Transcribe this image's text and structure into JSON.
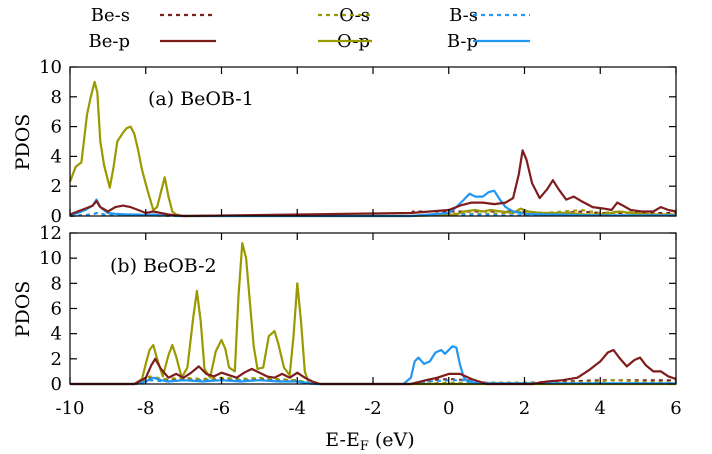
{
  "legend": [
    {
      "label": "Be-s",
      "color": "#7f1d1d",
      "dash": true
    },
    {
      "label": "O-s",
      "color": "#9a9a00",
      "dash": true
    },
    {
      "label": "B-s",
      "color": "#2196f3",
      "dash": true
    },
    {
      "label": "Be-p",
      "color": "#7f1d1d",
      "dash": false
    },
    {
      "label": "O-p",
      "color": "#9a9a00",
      "dash": false
    },
    {
      "label": "B-p",
      "color": "#2196f3",
      "dash": false
    }
  ],
  "xlabel_main": "E-E",
  "xlabel_sub": "F",
  "xlabel_unit": " (eV)",
  "chart_data": [
    {
      "type": "line",
      "title": "(a) BeOB-1",
      "ylabel": "PDOS",
      "xlim": [
        -10,
        6
      ],
      "ylim": [
        0,
        10
      ],
      "xticks": [
        -10,
        -8,
        -6,
        -4,
        -2,
        0,
        2,
        4,
        6
      ],
      "yticks": [
        0,
        2,
        4,
        6,
        8,
        10
      ],
      "series": [
        {
          "name": "O-p",
          "color": "#9a9a00",
          "dash": false,
          "x": [
            -10,
            -9.85,
            -9.7,
            -9.55,
            -9.45,
            -9.35,
            -9.28,
            -9.2,
            -9.1,
            -8.95,
            -8.85,
            -8.75,
            -8.6,
            -8.5,
            -8.4,
            -8.3,
            -8.2,
            -8.1,
            -7.95,
            -7.8,
            -7.7,
            -7.6,
            -7.5,
            -7.4,
            -7.3,
            -7.2,
            -7.1,
            -7.0,
            -1.0,
            0.2,
            0.4,
            0.7,
            0.9,
            1.1,
            1.4,
            1.7,
            1.9,
            2.1,
            2.4,
            2.8,
            3.2,
            3.6,
            4.0,
            4.3,
            4.5,
            4.8,
            5.2,
            5.6,
            5.9,
            6.0
          ],
          "y": [
            2.3,
            3.3,
            3.6,
            6.8,
            8.0,
            9.0,
            8.3,
            5.0,
            3.4,
            1.9,
            3.3,
            5.0,
            5.6,
            5.9,
            6.0,
            5.5,
            4.4,
            3.1,
            1.7,
            0.4,
            0.6,
            1.6,
            2.6,
            1.3,
            0.3,
            0.1,
            0.05,
            0.0,
            0.0,
            0.1,
            0.3,
            0.4,
            0.3,
            0.4,
            0.3,
            0.2,
            0.5,
            0.3,
            0.2,
            0.2,
            0.2,
            0.1,
            0.1,
            0.2,
            0.3,
            0.2,
            0.1,
            0.1,
            0.1,
            0.1
          ]
        },
        {
          "name": "Be-p",
          "color": "#7f1d1d",
          "dash": false,
          "x": [
            -10,
            -9.8,
            -9.6,
            -9.4,
            -9.3,
            -9.2,
            -9.0,
            -8.8,
            -8.6,
            -8.4,
            -8.2,
            -8.0,
            -7.8,
            -7.6,
            -7.4,
            -7.2,
            -7.0,
            -1.0,
            -0.5,
            0.0,
            0.3,
            0.6,
            0.9,
            1.2,
            1.5,
            1.7,
            1.85,
            1.95,
            2.05,
            2.2,
            2.4,
            2.6,
            2.75,
            2.9,
            3.1,
            3.3,
            3.5,
            3.8,
            4.1,
            4.3,
            4.45,
            4.6,
            4.8,
            5.1,
            5.4,
            5.6,
            5.8,
            6.0
          ],
          "y": [
            0.1,
            0.3,
            0.5,
            0.7,
            1.0,
            0.6,
            0.3,
            0.6,
            0.7,
            0.6,
            0.4,
            0.2,
            0.3,
            0.2,
            0.1,
            0.05,
            0.0,
            0.2,
            0.3,
            0.4,
            0.7,
            0.9,
            0.9,
            0.8,
            0.9,
            1.2,
            2.8,
            4.4,
            3.8,
            2.2,
            1.2,
            1.8,
            2.4,
            1.8,
            1.1,
            1.3,
            1.0,
            0.6,
            0.5,
            0.4,
            0.9,
            0.7,
            0.4,
            0.3,
            0.3,
            0.6,
            0.4,
            0.3
          ]
        },
        {
          "name": "B-p",
          "color": "#2196f3",
          "dash": false,
          "x": [
            -10,
            -9.8,
            -9.6,
            -9.4,
            -9.3,
            -9.2,
            -9.0,
            -8.8,
            -8.5,
            -8.2,
            -8.0,
            -7.8,
            -7.6,
            -7.4,
            -7.2,
            -1.0,
            0.0,
            0.2,
            0.4,
            0.55,
            0.7,
            0.9,
            1.05,
            1.2,
            1.35,
            1.5,
            1.7,
            2.0,
            2.5,
            3.0,
            3.5,
            4.0,
            4.5,
            5.0,
            5.5,
            6.0
          ],
          "y": [
            0.05,
            0.2,
            0.4,
            0.7,
            1.1,
            0.6,
            0.2,
            0.15,
            0.1,
            0.1,
            0.05,
            0.1,
            0.05,
            0.1,
            0.0,
            0.0,
            0.2,
            0.6,
            1.1,
            1.5,
            1.3,
            1.3,
            1.6,
            1.7,
            1.1,
            0.6,
            0.3,
            0.15,
            0.1,
            0.1,
            0.05,
            0.05,
            0.05,
            0.05,
            0.05,
            0.05
          ]
        },
        {
          "name": "Be-s",
          "color": "#7f1d1d",
          "dash": true,
          "x": [
            -10,
            -9.4,
            -9.3,
            -9.1,
            -8.6,
            -8.2,
            -7.8,
            -7.2,
            -1.0,
            -0.95,
            -0.5,
            0.0,
            0.5,
            1.0,
            1.5,
            2.0,
            2.5,
            3.0,
            3.5,
            4.0,
            4.5,
            5.0,
            5.5,
            6.0
          ],
          "y": [
            0.0,
            0.1,
            0.2,
            0.1,
            0.1,
            0.05,
            0.05,
            0.0,
            0.0,
            0.3,
            0.3,
            0.3,
            0.3,
            0.3,
            0.3,
            0.3,
            0.2,
            0.2,
            0.3,
            0.2,
            0.2,
            0.2,
            0.2,
            0.2
          ]
        },
        {
          "name": "O-s",
          "color": "#9a9a00",
          "dash": true,
          "x": [
            -10,
            -9.4,
            -9.3,
            -9.1,
            -8.6,
            -8.0,
            -7.2,
            -1.0,
            -0.5,
            0.0,
            0.5,
            1.0,
            1.5,
            2.0,
            2.5,
            3.0,
            3.5,
            4.0,
            4.5,
            5.0,
            5.5,
            6.0
          ],
          "y": [
            0.0,
            0.1,
            0.2,
            0.1,
            0.05,
            0.05,
            0.0,
            0.0,
            0.1,
            0.15,
            0.15,
            0.15,
            0.2,
            0.3,
            0.2,
            0.3,
            0.4,
            0.2,
            0.3,
            0.2,
            0.1,
            0.1
          ]
        },
        {
          "name": "B-s",
          "color": "#2196f3",
          "dash": true,
          "x": [
            -10,
            -9.4,
            -9.3,
            -9.1,
            -8.5,
            -8.0,
            -7.2,
            -1.0,
            -0.5,
            0.0,
            0.5,
            1.0,
            1.5,
            2.0,
            3.0,
            4.0,
            5.0,
            6.0
          ],
          "y": [
            0.0,
            0.1,
            0.2,
            0.1,
            0.05,
            0.05,
            0.0,
            0.0,
            0.05,
            0.1,
            0.1,
            0.1,
            0.05,
            0.05,
            0.05,
            0.05,
            0.05,
            0.05
          ]
        }
      ]
    },
    {
      "type": "line",
      "title": "(b) BeOB-2",
      "ylabel": "PDOS",
      "xlim": [
        -10,
        6
      ],
      "ylim": [
        0,
        12
      ],
      "xticks": [
        -10,
        -8,
        -6,
        -4,
        -2,
        0,
        2,
        4,
        6
      ],
      "yticks": [
        0,
        2,
        4,
        6,
        8,
        10,
        12
      ],
      "series": [
        {
          "name": "O-p",
          "color": "#9a9a00",
          "dash": false,
          "x": [
            -10,
            -8.3,
            -8.1,
            -8.0,
            -7.9,
            -7.8,
            -7.7,
            -7.55,
            -7.4,
            -7.3,
            -7.2,
            -7.05,
            -6.9,
            -6.75,
            -6.65,
            -6.55,
            -6.45,
            -6.3,
            -6.15,
            -6.0,
            -5.9,
            -5.8,
            -5.65,
            -5.55,
            -5.45,
            -5.35,
            -5.25,
            -5.15,
            -5.05,
            -4.9,
            -4.75,
            -4.6,
            -4.5,
            -4.35,
            -4.2,
            -4.1,
            -4.0,
            -3.9,
            -3.8,
            -3.7,
            -3.5,
            6.0
          ],
          "y": [
            0.0,
            0.0,
            0.4,
            1.6,
            2.7,
            3.1,
            2.0,
            0.6,
            2.3,
            3.1,
            2.2,
            0.5,
            1.3,
            5.2,
            7.4,
            5.0,
            1.2,
            0.5,
            2.6,
            3.5,
            2.8,
            1.3,
            1.0,
            7.0,
            11.2,
            10.0,
            6.5,
            3.0,
            1.2,
            1.3,
            3.8,
            4.2,
            3.2,
            1.3,
            0.7,
            3.8,
            8.0,
            5.0,
            1.0,
            0.1,
            0.0,
            0.0
          ]
        },
        {
          "name": "Be-p",
          "color": "#7f1d1d",
          "dash": false,
          "x": [
            -10,
            -8.3,
            -8.0,
            -7.85,
            -7.75,
            -7.6,
            -7.4,
            -7.2,
            -7.0,
            -6.8,
            -6.6,
            -6.4,
            -6.2,
            -6.0,
            -5.8,
            -5.6,
            -5.4,
            -5.2,
            -5.0,
            -4.8,
            -4.6,
            -4.4,
            -4.2,
            -4.0,
            -3.8,
            -3.6,
            -3.4,
            -1.0,
            -0.6,
            -0.3,
            0.0,
            0.3,
            0.6,
            0.8,
            1.0,
            2.2,
            2.6,
            3.0,
            3.4,
            3.7,
            4.0,
            4.2,
            4.35,
            4.5,
            4.7,
            4.9,
            5.05,
            5.2,
            5.4,
            5.6,
            5.8,
            6.0
          ],
          "y": [
            0.0,
            0.0,
            0.5,
            1.5,
            2.0,
            1.2,
            0.5,
            0.8,
            0.5,
            0.9,
            1.4,
            0.8,
            0.6,
            0.9,
            0.7,
            0.5,
            0.9,
            1.2,
            0.9,
            0.6,
            0.5,
            0.8,
            0.5,
            0.9,
            0.5,
            0.2,
            0.0,
            0.0,
            0.3,
            0.5,
            0.8,
            0.8,
            0.4,
            0.2,
            0.0,
            0.0,
            0.2,
            0.3,
            0.5,
            1.1,
            1.8,
            2.5,
            2.7,
            2.1,
            1.4,
            1.9,
            2.1,
            1.5,
            1.0,
            1.0,
            0.6,
            0.4
          ]
        },
        {
          "name": "B-p",
          "color": "#2196f3",
          "dash": false,
          "x": [
            -10,
            -8.3,
            -8.0,
            -7.8,
            -7.6,
            -7.4,
            -7.0,
            -6.5,
            -6.0,
            -5.5,
            -5.0,
            -4.5,
            -4.0,
            -3.5,
            -1.2,
            -1.0,
            -0.9,
            -0.8,
            -0.65,
            -0.5,
            -0.35,
            -0.2,
            -0.1,
            0.0,
            0.1,
            0.2,
            0.3,
            0.4,
            0.5,
            0.7,
            1.0,
            2.0,
            4.0,
            6.0
          ],
          "y": [
            0.0,
            0.0,
            0.2,
            0.5,
            0.3,
            0.2,
            0.3,
            0.2,
            0.3,
            0.2,
            0.3,
            0.2,
            0.2,
            0.0,
            0.0,
            0.5,
            1.8,
            2.1,
            1.6,
            1.8,
            2.5,
            2.7,
            2.4,
            2.7,
            3.0,
            2.9,
            1.5,
            0.5,
            0.2,
            0.1,
            0.05,
            0.05,
            0.05,
            0.05
          ]
        },
        {
          "name": "Be-s",
          "color": "#7f1d1d",
          "dash": true,
          "x": [
            -10,
            -8.2,
            -7.9,
            -7.5,
            -7.0,
            -6.5,
            -6.0,
            -5.5,
            -5.0,
            -4.5,
            -4.0,
            -3.6,
            -1.0,
            -0.5,
            0.0,
            0.5,
            1.0,
            2.0,
            3.0,
            4.0,
            5.0,
            6.0
          ],
          "y": [
            0.0,
            0.0,
            0.5,
            0.3,
            0.4,
            0.3,
            0.4,
            0.3,
            0.4,
            0.3,
            0.3,
            0.0,
            0.0,
            0.3,
            0.4,
            0.3,
            0.1,
            0.1,
            0.2,
            0.3,
            0.3,
            0.3
          ]
        },
        {
          "name": "O-s",
          "color": "#9a9a00",
          "dash": true,
          "x": [
            -10,
            -8.2,
            -7.9,
            -7.5,
            -7.0,
            -6.5,
            -6.0,
            -5.5,
            -5.0,
            -4.5,
            -4.0,
            -3.6,
            -1.0,
            0.0,
            1.0,
            2.0,
            3.0,
            4.0,
            4.3,
            5.0,
            6.0
          ],
          "y": [
            0.0,
            0.0,
            0.6,
            0.4,
            0.5,
            0.4,
            0.5,
            0.4,
            0.5,
            0.4,
            0.3,
            0.0,
            0.0,
            0.1,
            0.1,
            0.1,
            0.1,
            0.2,
            0.3,
            0.2,
            0.1
          ]
        },
        {
          "name": "B-s",
          "color": "#2196f3",
          "dash": true,
          "x": [
            -10,
            -8.2,
            -7.9,
            -7.5,
            -7.0,
            -6.0,
            -5.0,
            -4.0,
            -3.6,
            -1.0,
            -0.5,
            0.0,
            0.5,
            1.0,
            2.0,
            4.0,
            6.0
          ],
          "y": [
            0.0,
            0.0,
            0.3,
            0.2,
            0.3,
            0.3,
            0.3,
            0.2,
            0.0,
            0.0,
            0.2,
            0.3,
            0.3,
            0.1,
            0.05,
            0.05,
            0.05
          ]
        }
      ]
    }
  ]
}
